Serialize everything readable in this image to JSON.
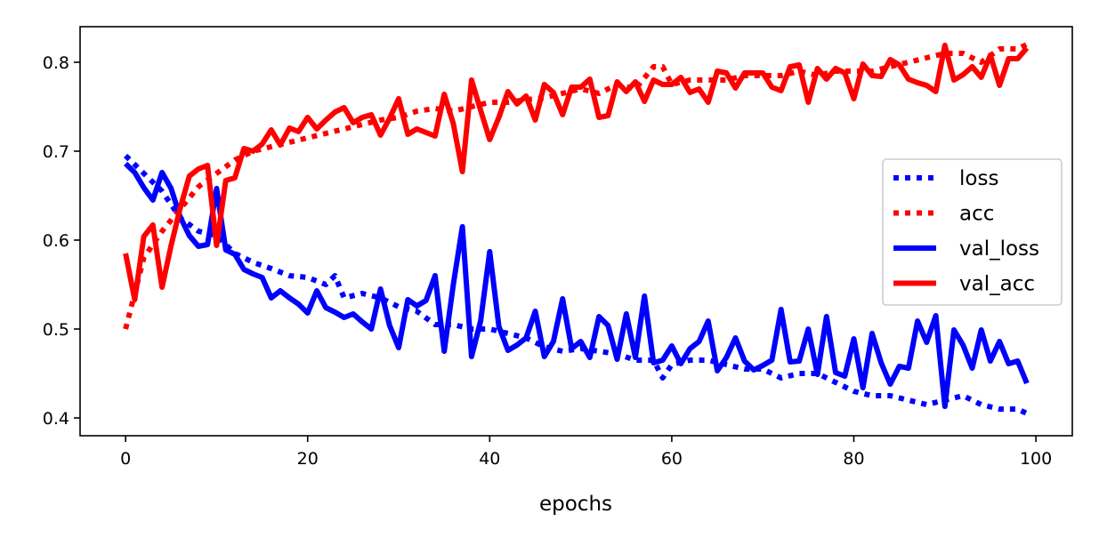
{
  "chart_data": {
    "type": "line",
    "title": "",
    "xlabel": "epochs",
    "ylabel": "",
    "xlim": [
      -5,
      104
    ],
    "ylim": [
      0.38,
      0.84
    ],
    "xticks": [
      0,
      20,
      40,
      60,
      80,
      100
    ],
    "yticks": [
      0.4,
      0.5,
      0.6,
      0.7,
      0.8
    ],
    "xtick_labels": [
      "0",
      "20",
      "40",
      "60",
      "80",
      "100"
    ],
    "ytick_labels": [
      "0.4",
      "0.5",
      "0.6",
      "0.7",
      "0.8"
    ],
    "grid": false,
    "legend_position": "center-right",
    "series": [
      {
        "name": "loss",
        "color": "#0000ff",
        "style": "dotted",
        "x": [
          0,
          2,
          4,
          6,
          8,
          10,
          12,
          14,
          16,
          18,
          20,
          22,
          23,
          24,
          26,
          28,
          30,
          32,
          34,
          36,
          38,
          40,
          42,
          44,
          46,
          48,
          50,
          52,
          54,
          56,
          58,
          59,
          60,
          62,
          64,
          66,
          68,
          70,
          72,
          74,
          76,
          78,
          80,
          82,
          84,
          86,
          88,
          90,
          92,
          94,
          96,
          98,
          99
        ],
        "values": [
          0.695,
          0.675,
          0.655,
          0.625,
          0.61,
          0.605,
          0.585,
          0.575,
          0.568,
          0.56,
          0.558,
          0.55,
          0.56,
          0.535,
          0.54,
          0.535,
          0.525,
          0.52,
          0.505,
          0.505,
          0.5,
          0.5,
          0.495,
          0.49,
          0.48,
          0.475,
          0.478,
          0.475,
          0.472,
          0.465,
          0.465,
          0.445,
          0.46,
          0.465,
          0.465,
          0.46,
          0.455,
          0.455,
          0.445,
          0.45,
          0.45,
          0.44,
          0.43,
          0.425,
          0.425,
          0.42,
          0.415,
          0.42,
          0.425,
          0.415,
          0.41,
          0.41,
          0.405
        ]
      },
      {
        "name": "acc",
        "color": "#ff0000",
        "style": "dotted",
        "x": [
          0,
          2,
          4,
          6,
          8,
          10,
          12,
          14,
          16,
          18,
          20,
          22,
          24,
          26,
          28,
          30,
          32,
          34,
          36,
          38,
          40,
          42,
          44,
          46,
          48,
          50,
          52,
          54,
          56,
          58,
          59,
          60,
          62,
          64,
          66,
          68,
          70,
          72,
          74,
          76,
          78,
          80,
          82,
          84,
          86,
          88,
          90,
          92,
          94,
          96,
          98,
          99
        ],
        "values": [
          0.5,
          0.58,
          0.61,
          0.635,
          0.66,
          0.675,
          0.69,
          0.7,
          0.705,
          0.71,
          0.715,
          0.72,
          0.725,
          0.73,
          0.735,
          0.738,
          0.745,
          0.748,
          0.745,
          0.75,
          0.755,
          0.755,
          0.758,
          0.76,
          0.765,
          0.77,
          0.765,
          0.775,
          0.77,
          0.795,
          0.795,
          0.775,
          0.78,
          0.78,
          0.78,
          0.785,
          0.785,
          0.785,
          0.79,
          0.785,
          0.79,
          0.79,
          0.79,
          0.795,
          0.8,
          0.805,
          0.81,
          0.81,
          0.8,
          0.815,
          0.815,
          0.82
        ]
      },
      {
        "name": "val_loss",
        "color": "#0000ff",
        "style": "solid",
        "x": [
          0,
          1,
          2,
          3,
          4,
          5,
          6,
          7,
          8,
          9,
          10,
          11,
          12,
          13,
          14,
          15,
          16,
          17,
          18,
          19,
          20,
          21,
          22,
          23,
          24,
          25,
          26,
          27,
          28,
          29,
          30,
          31,
          32,
          33,
          34,
          35,
          36,
          37,
          38,
          39,
          40,
          41,
          42,
          43,
          44,
          45,
          46,
          47,
          48,
          49,
          50,
          51,
          52,
          53,
          54,
          55,
          56,
          57,
          58,
          59,
          60,
          61,
          62,
          63,
          64,
          65,
          66,
          67,
          68,
          69,
          70,
          71,
          72,
          73,
          74,
          75,
          76,
          77,
          78,
          79,
          80,
          81,
          82,
          83,
          84,
          85,
          86,
          87,
          88,
          89,
          90,
          91,
          92,
          93,
          94,
          95,
          96,
          97,
          98,
          99
        ],
        "values": [
          0.686,
          0.676,
          0.659,
          0.645,
          0.676,
          0.658,
          0.626,
          0.605,
          0.593,
          0.595,
          0.658,
          0.589,
          0.584,
          0.567,
          0.562,
          0.558,
          0.535,
          0.543,
          0.535,
          0.528,
          0.518,
          0.543,
          0.524,
          0.519,
          0.513,
          0.517,
          0.508,
          0.5,
          0.545,
          0.504,
          0.479,
          0.533,
          0.526,
          0.532,
          0.56,
          0.475,
          0.55,
          0.615,
          0.469,
          0.509,
          0.587,
          0.503,
          0.476,
          0.482,
          0.49,
          0.52,
          0.469,
          0.486,
          0.534,
          0.478,
          0.486,
          0.468,
          0.514,
          0.504,
          0.466,
          0.517,
          0.468,
          0.537,
          0.462,
          0.465,
          0.481,
          0.461,
          0.478,
          0.486,
          0.509,
          0.453,
          0.468,
          0.49,
          0.464,
          0.454,
          0.459,
          0.465,
          0.522,
          0.463,
          0.464,
          0.5,
          0.449,
          0.514,
          0.451,
          0.447,
          0.489,
          0.434,
          0.495,
          0.462,
          0.438,
          0.458,
          0.456,
          0.509,
          0.485,
          0.515,
          0.413,
          0.499,
          0.482,
          0.456,
          0.499,
          0.464,
          0.486,
          0.461,
          0.464,
          0.439
        ]
      },
      {
        "name": "val_acc",
        "color": "#ff0000",
        "style": "solid",
        "x": [
          0,
          1,
          2,
          3,
          4,
          5,
          6,
          7,
          8,
          9,
          10,
          11,
          12,
          13,
          14,
          15,
          16,
          17,
          18,
          19,
          20,
          21,
          22,
          23,
          24,
          25,
          26,
          27,
          28,
          29,
          30,
          31,
          32,
          33,
          34,
          35,
          36,
          37,
          38,
          39,
          40,
          41,
          42,
          43,
          44,
          45,
          46,
          47,
          48,
          49,
          50,
          51,
          52,
          53,
          54,
          55,
          56,
          57,
          58,
          59,
          60,
          61,
          62,
          63,
          64,
          65,
          66,
          67,
          68,
          69,
          70,
          71,
          72,
          73,
          74,
          75,
          76,
          77,
          78,
          79,
          80,
          81,
          82,
          83,
          84,
          85,
          86,
          87,
          88,
          89,
          90,
          91,
          92,
          93,
          94,
          95,
          96,
          97,
          98,
          99
        ],
        "values": [
          0.585,
          0.533,
          0.604,
          0.617,
          0.547,
          0.594,
          0.636,
          0.672,
          0.68,
          0.684,
          0.594,
          0.667,
          0.67,
          0.703,
          0.7,
          0.708,
          0.724,
          0.707,
          0.726,
          0.722,
          0.738,
          0.725,
          0.735,
          0.744,
          0.749,
          0.732,
          0.738,
          0.741,
          0.718,
          0.737,
          0.759,
          0.719,
          0.725,
          0.721,
          0.717,
          0.764,
          0.731,
          0.677,
          0.78,
          0.746,
          0.713,
          0.738,
          0.767,
          0.753,
          0.762,
          0.735,
          0.775,
          0.766,
          0.741,
          0.772,
          0.772,
          0.781,
          0.738,
          0.74,
          0.778,
          0.767,
          0.778,
          0.756,
          0.78,
          0.775,
          0.775,
          0.783,
          0.766,
          0.77,
          0.755,
          0.79,
          0.788,
          0.771,
          0.788,
          0.788,
          0.788,
          0.772,
          0.768,
          0.795,
          0.797,
          0.755,
          0.793,
          0.781,
          0.793,
          0.788,
          0.759,
          0.798,
          0.785,
          0.784,
          0.803,
          0.797,
          0.781,
          0.777,
          0.774,
          0.767,
          0.819,
          0.78,
          0.786,
          0.795,
          0.783,
          0.808,
          0.774,
          0.804,
          0.804,
          0.816
        ]
      }
    ]
  }
}
